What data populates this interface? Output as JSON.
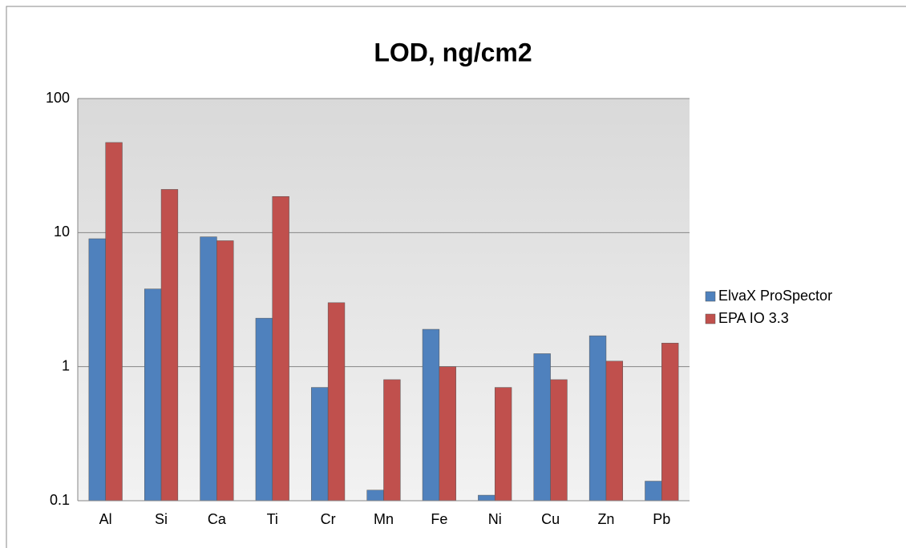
{
  "chart_data": {
    "type": "bar",
    "title": "LOD, ng/cm2",
    "categories": [
      "Al",
      "Si",
      "Ca",
      "Ti",
      "Cr",
      "Mn",
      "Fe",
      "Ni",
      "Cu",
      "Zn",
      "Pb"
    ],
    "series": [
      {
        "name": "ElvaX ProSpector",
        "color": "#4f81bd",
        "values": [
          9,
          3.8,
          9.3,
          2.3,
          0.7,
          0.12,
          1.9,
          0.11,
          1.25,
          1.7,
          0.14
        ]
      },
      {
        "name": "EPA IO 3.3",
        "color": "#c0504d",
        "values": [
          47,
          21,
          8.7,
          18.6,
          3,
          0.8,
          1,
          0.7,
          0.8,
          1.1,
          1.5
        ]
      }
    ],
    "ylim": [
      0.1,
      100
    ],
    "yticks": [
      0.1,
      1,
      10,
      100
    ],
    "log_scale": true,
    "grid": true,
    "legend": "right"
  }
}
